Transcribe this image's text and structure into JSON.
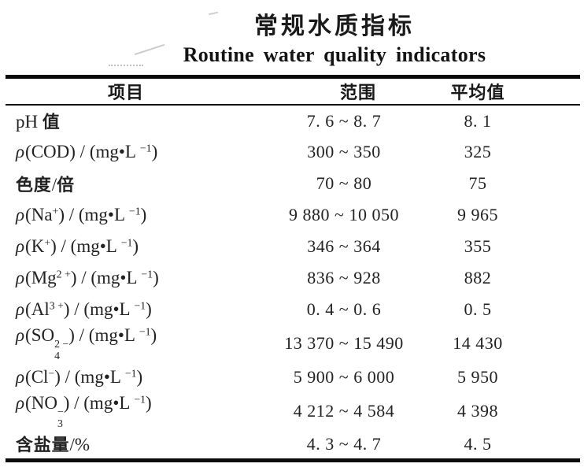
{
  "page": {
    "background_color": "#ffffff",
    "text_color": "#1e1e1e",
    "rule_color": "#0a0a0a"
  },
  "titles": {
    "chinese": "常规水质指标",
    "english": "Routine water quality indicators"
  },
  "table": {
    "headers": [
      "项目",
      "范围",
      "平均值"
    ],
    "rows": [
      {
        "item": "pH 值",
        "range": "7. 6 ~ 8. 7",
        "average": "8. 1"
      },
      {
        "item": "ρ(COD) / (mg•L ^{−1})",
        "range": "300 ~ 350",
        "average": "325"
      },
      {
        "item": "色度/倍",
        "range": "70 ~ 80",
        "average": "75"
      },
      {
        "item": "ρ(Na^{+}) / (mg•L ^{−1})",
        "range": "9 880 ~ 10 050",
        "average": "9 965"
      },
      {
        "item": "ρ(K^{+}) / (mg•L ^{−1})",
        "range": "346 ~ 364",
        "average": "355"
      },
      {
        "item": "ρ(Mg^{2 +}) / (mg•L ^{−1})",
        "range": "836 ~ 928",
        "average": "882"
      },
      {
        "item": "ρ(Al^{3 +}) / (mg•L ^{−1})",
        "range": "0. 4 ~ 0. 6",
        "average": "0. 5"
      },
      {
        "item": "ρ(SO_{4}^{2 −}) / (mg•L ^{−1})",
        "range": "13 370 ~ 15 490",
        "average": "14 430"
      },
      {
        "item": "ρ(Cl^{−}) / (mg•L ^{−1})",
        "range": "5 900 ~ 6 000",
        "average": "5 950"
      },
      {
        "item": "ρ(NO_{3}^{−}) / (mg•L ^{−1})",
        "range": "4 212 ~ 4 584",
        "average": "4 398"
      },
      {
        "item": "含盐量/%",
        "range": "4. 3 ~ 4. 7",
        "average": "4. 5"
      }
    ]
  }
}
